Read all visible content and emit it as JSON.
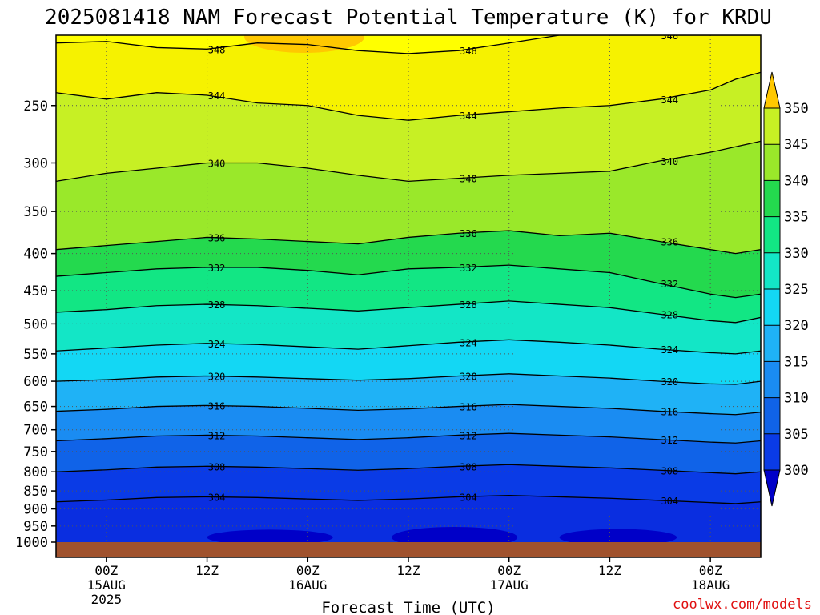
{
  "chart_data": {
    "type": "heatmap",
    "title": "2025081418 NAM Forecast Potential Temperature (K) for KRDU",
    "xlabel": "Forecast Time (UTC)",
    "ylabel": "",
    "credit": "coolwx.com/models",
    "x_ticks": [
      {
        "lines": [
          "00Z",
          "15AUG",
          "2025"
        ],
        "hours": 6
      },
      {
        "lines": [
          "12Z"
        ],
        "hours": 18
      },
      {
        "lines": [
          "00Z",
          "16AUG"
        ],
        "hours": 30
      },
      {
        "lines": [
          "12Z"
        ],
        "hours": 42
      },
      {
        "lines": [
          "00Z",
          "17AUG"
        ],
        "hours": 54
      },
      {
        "lines": [
          "12Z"
        ],
        "hours": 66
      },
      {
        "lines": [
          "00Z",
          "18AUG"
        ],
        "hours": 78
      }
    ],
    "xlim_hours": [
      0,
      84
    ],
    "y_ticks": [
      250,
      300,
      350,
      400,
      450,
      500,
      550,
      600,
      650,
      700,
      750,
      800,
      850,
      900,
      950,
      1000
    ],
    "ylim_hpa": [
      200,
      1000
    ],
    "y_scale": "log-pressure",
    "grid": true,
    "colorbar": {
      "ticks": [
        300,
        305,
        310,
        315,
        320,
        325,
        330,
        335,
        340,
        345,
        350
      ],
      "colors": [
        "#0000c8",
        "#0a3be6",
        "#1063e8",
        "#1a8cf2",
        "#1fb2f6",
        "#13d7f4",
        "#13e6c6",
        "#12e684",
        "#24d94e",
        "#9ae82a",
        "#c7f024",
        "#ffff00",
        "#ffc800"
      ]
    },
    "contour_labels": [
      "348",
      "344",
      "340",
      "336",
      "332",
      "328",
      "324",
      "320",
      "316",
      "312",
      "308",
      "304"
    ],
    "isentropes": [
      {
        "value": 348,
        "pressure": [
          205,
          204,
          208,
          209,
          205,
          206,
          210,
          212,
          210,
          205,
          200,
          200,
          200,
          200,
          200,
          200
        ]
      },
      {
        "value": 344,
        "pressure": [
          240,
          245,
          240,
          242,
          248,
          250,
          258,
          262,
          258,
          255,
          252,
          250,
          245,
          238,
          230,
          225
        ]
      },
      {
        "value": 340,
        "pressure": [
          318,
          310,
          305,
          300,
          300,
          305,
          312,
          318,
          315,
          312,
          310,
          308,
          298,
          290,
          285,
          280
        ]
      },
      {
        "value": 336,
        "pressure": [
          395,
          390,
          385,
          380,
          382,
          385,
          388,
          380,
          375,
          372,
          378,
          375,
          385,
          395,
          400,
          395
        ]
      },
      {
        "value": 332,
        "pressure": [
          430,
          425,
          420,
          418,
          418,
          422,
          428,
          420,
          418,
          415,
          420,
          425,
          440,
          455,
          460,
          455
        ]
      },
      {
        "value": 328,
        "pressure": [
          482,
          478,
          472,
          470,
          472,
          476,
          480,
          475,
          470,
          465,
          470,
          475,
          485,
          495,
          498,
          490
        ]
      },
      {
        "value": 324,
        "pressure": [
          545,
          540,
          535,
          532,
          534,
          538,
          542,
          536,
          530,
          526,
          530,
          535,
          542,
          548,
          550,
          545
        ]
      },
      {
        "value": 320,
        "pressure": [
          600,
          597,
          592,
          590,
          592,
          595,
          598,
          595,
          590,
          586,
          590,
          594,
          600,
          605,
          606,
          600
        ]
      },
      {
        "value": 316,
        "pressure": [
          660,
          656,
          650,
          648,
          650,
          654,
          658,
          655,
          650,
          646,
          650,
          654,
          660,
          665,
          667,
          662
        ]
      },
      {
        "value": 312,
        "pressure": [
          725,
          720,
          714,
          712,
          714,
          718,
          722,
          718,
          712,
          708,
          712,
          716,
          722,
          728,
          730,
          725
        ]
      },
      {
        "value": 308,
        "pressure": [
          800,
          795,
          788,
          786,
          788,
          792,
          796,
          792,
          786,
          782,
          786,
          790,
          796,
          802,
          805,
          800
        ]
      },
      {
        "value": 304,
        "pressure": [
          880,
          875,
          868,
          866,
          868,
          872,
          876,
          872,
          866,
          862,
          866,
          870,
          876,
          882,
          885,
          880
        ]
      }
    ],
    "isentrope_hours": [
      0,
      6,
      12,
      18,
      24,
      30,
      36,
      42,
      48,
      54,
      60,
      66,
      72,
      78,
      81,
      84
    ]
  }
}
